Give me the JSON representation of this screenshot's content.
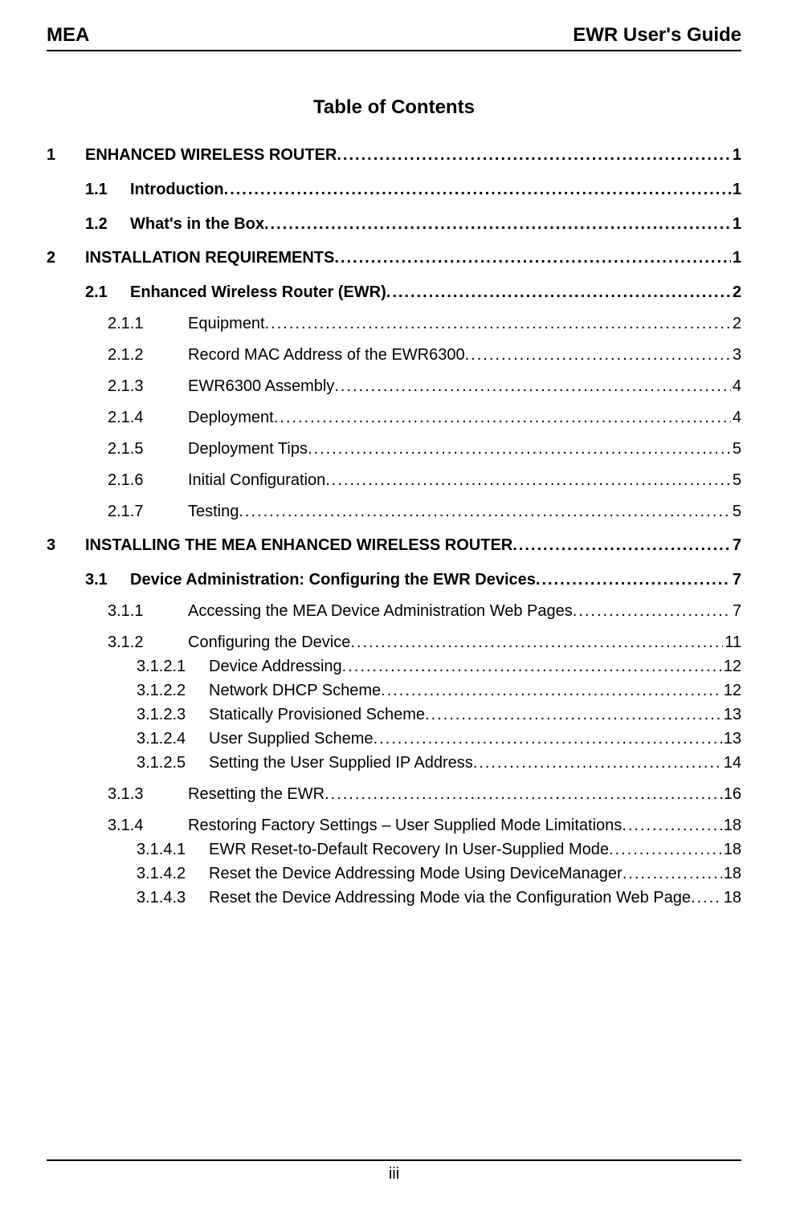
{
  "colors": {
    "text": "#000000",
    "background": "#ffffff",
    "rule": "#000000"
  },
  "typography": {
    "family": "Arial, Helvetica, sans-serif",
    "header_size_pt": 18,
    "title_size_pt": 18,
    "body_size_pt": 15
  },
  "header": {
    "left": "MEA",
    "right": "EWR User's Guide"
  },
  "toc_title": "Table of Contents",
  "footer": {
    "page_number": "iii"
  },
  "dots": "........................................................................................................................................................................................................",
  "toc": [
    {
      "level": 1,
      "num": "1",
      "label": "ENHANCED WIRELESS ROUTER",
      "page": "1"
    },
    {
      "level": 2,
      "num": "1.1",
      "label": "Introduction",
      "page": "1"
    },
    {
      "level": 2,
      "num": "1.2",
      "label": "What's in the Box ",
      "page": "1"
    },
    {
      "level": 1,
      "num": "2",
      "label": "INSTALLATION REQUIREMENTS",
      "page": "1"
    },
    {
      "level": 2,
      "num": "2.1",
      "label": "Enhanced Wireless Router (EWR) ",
      "page": "2"
    },
    {
      "level": 3,
      "num": "2.1.1",
      "label": "Equipment ",
      "page": "2"
    },
    {
      "level": 3,
      "num": "2.1.2",
      "label": "Record MAC Address of the EWR6300 ",
      "page": "3"
    },
    {
      "level": 3,
      "num": "2.1.3",
      "label": "EWR6300 Assembly",
      "page": "4"
    },
    {
      "level": 3,
      "num": "2.1.4",
      "label": "Deployment ",
      "page": "4"
    },
    {
      "level": 3,
      "num": "2.1.5",
      "label": "Deployment Tips",
      "page": "5"
    },
    {
      "level": 3,
      "num": "2.1.6",
      "label": "Initial Configuration",
      "page": "5"
    },
    {
      "level": 3,
      "num": "2.1.7",
      "label": "Testing",
      "page": "5"
    },
    {
      "level": 1,
      "num": "3",
      "label": "INSTALLING THE MEA ENHANCED WIRELESS ROUTER",
      "page": "7"
    },
    {
      "level": 2,
      "num": "3.1",
      "label": "Device Administration: Configuring the EWR Devices",
      "page": "7"
    },
    {
      "level": 3,
      "num": "3.1.1",
      "label": "Accessing the MEA Device Administration Web Pages ",
      "page": "7"
    },
    {
      "level": 3,
      "num": "3.1.2",
      "label": "Configuring the Device ",
      "page": "11"
    },
    {
      "level": 4,
      "num": "3.1.2.1",
      "label": "Device Addressing",
      "page": "12"
    },
    {
      "level": 4,
      "num": "3.1.2.2",
      "label": "Network DHCP Scheme ",
      "page": "12"
    },
    {
      "level": 4,
      "num": "3.1.2.3",
      "label": "Statically Provisioned Scheme ",
      "page": "13"
    },
    {
      "level": 4,
      "num": "3.1.2.4",
      "label": "User Supplied Scheme",
      "page": "13"
    },
    {
      "level": 4,
      "num": "3.1.2.5",
      "label": "Setting the User Supplied IP Address ",
      "page": "14"
    },
    {
      "level": 3,
      "num": "3.1.3",
      "label": "Resetting the EWR",
      "page": "16"
    },
    {
      "level": 3,
      "num": "3.1.4",
      "label": "Restoring Factory Settings – User Supplied Mode Limitations ",
      "page": "18"
    },
    {
      "level": 4,
      "num": "3.1.4.1",
      "label": "EWR Reset-to-Default Recovery In User-Supplied Mode ",
      "page": "18"
    },
    {
      "level": 4,
      "num": "3.1.4.2",
      "label": "Reset the Device Addressing Mode Using DeviceManager",
      "page": "18"
    },
    {
      "level": 4,
      "num": "3.1.4.3",
      "label": "Reset the Device Addressing Mode via the Configuration Web Page",
      "page": "18"
    }
  ]
}
